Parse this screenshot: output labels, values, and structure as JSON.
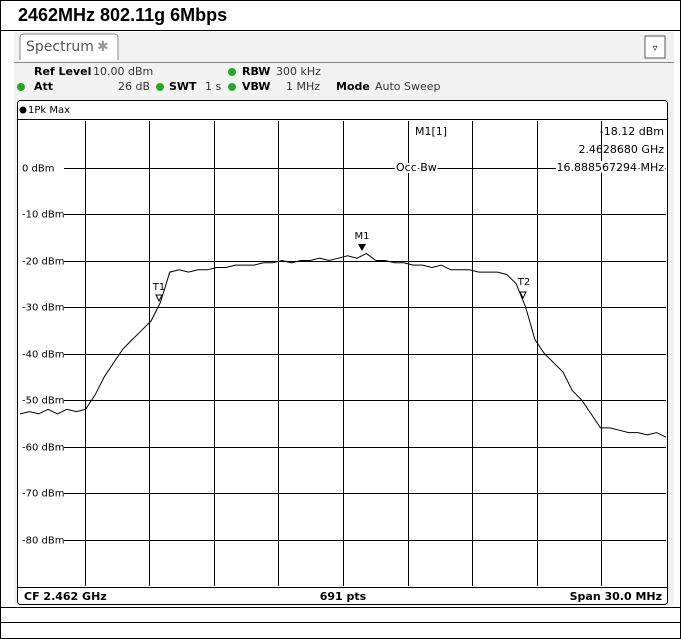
{
  "header": {
    "title": "2462MHz 802.11g 6Mbps"
  },
  "tab": "Spectrum",
  "settings": {
    "ref_level_label": "Ref Level",
    "ref_level": "10.00 dBm",
    "rbw_label": "RBW",
    "rbw": "300 kHz",
    "att_label": "Att",
    "att": "26 dB",
    "swt_label": "SWT",
    "swt": "1 s",
    "vbw_label": "VBW",
    "vbw": "1 MHz",
    "mode_label": "Mode",
    "mode": "Auto Sweep"
  },
  "chart_data": {
    "type": "line",
    "trace_label": "1Pk Max",
    "color": "#000000",
    "marker_info": {
      "name": "M1[1]",
      "level": "-18.12 dBm",
      "freq": "2.4628680 GHz",
      "occ_label": "Occ Bw",
      "occ": "16.888567294 MHz"
    },
    "markers": [
      "M1",
      "T1",
      "T2"
    ],
    "ylim": [
      10,
      -90
    ],
    "yticks": [
      {
        "value": 0,
        "label": "0 dBm"
      },
      {
        "value": -10,
        "label": "-10 dBm"
      },
      {
        "value": -20,
        "label": "-20 dBm"
      },
      {
        "value": -30,
        "label": "-30 dBm"
      },
      {
        "value": -40,
        "label": "-40 dBm"
      },
      {
        "value": -50,
        "label": "-50 dBm"
      },
      {
        "value": -60,
        "label": "-60 dBm"
      },
      {
        "value": -70,
        "label": "-70 dBm"
      },
      {
        "value": -80,
        "label": "-80 dBm"
      }
    ],
    "values": [
      -53,
      -52.5,
      -53,
      -52,
      -53,
      -52,
      -52.5,
      -52,
      -49,
      -45,
      -42,
      -39,
      -37,
      -35,
      -33,
      -29,
      -22.5,
      -22,
      -22.5,
      -22,
      -22,
      -21.5,
      -21.5,
      -21,
      -21,
      -21,
      -20.5,
      -20.5,
      -20,
      -20.5,
      -20,
      -20,
      -19.5,
      -20,
      -19.5,
      -19,
      -19.5,
      -18.5,
      -20,
      -20,
      -20.5,
      -20.5,
      -21,
      -21,
      -21.5,
      -21,
      -22,
      -22,
      -22,
      -22.5,
      -22.5,
      -22.5,
      -23,
      -25,
      -30,
      -37,
      -40,
      -42,
      -44,
      -48,
      -50,
      -53,
      -56,
      -56,
      -56.5,
      -57,
      -57,
      -57.5,
      -57,
      -58
    ],
    "footer": {
      "cf": "CF 2.462 GHz",
      "pts": "691 pts",
      "span": "Span 30.0 MHz"
    }
  }
}
